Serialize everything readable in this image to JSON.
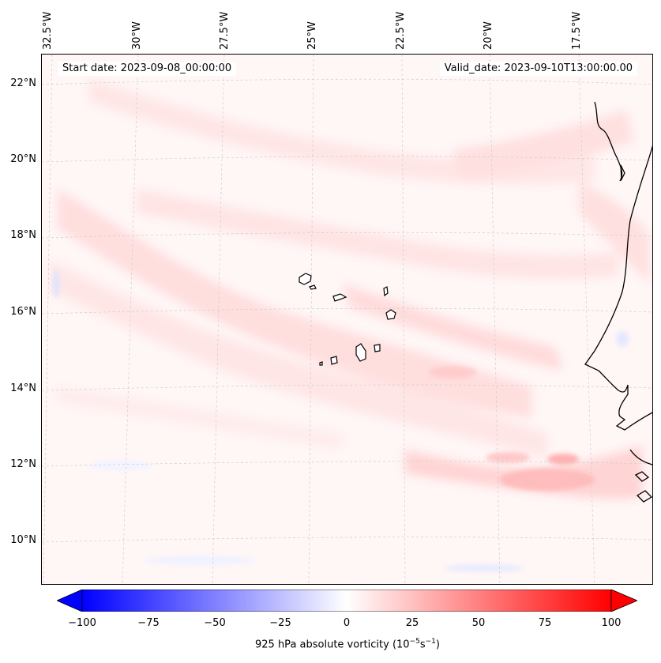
{
  "map": {
    "start_date": "Start date: 2023-09-08_00:00:00",
    "valid_date": "Valid_date: 2023-09-10T13:00:00.00",
    "lon_ticks": [
      "32.5°W",
      "30°W",
      "27.5°W",
      "25°W",
      "22.5°W",
      "20°W",
      "17.5°W"
    ],
    "lat_ticks": [
      "22°N",
      "20°N",
      "18°N",
      "16°N",
      "14°N",
      "12°N",
      "10°N"
    ],
    "field": "925 hPa absolute vorticity",
    "background_color": "#fff5f5",
    "coastline_color": "#000000",
    "gridline_color": "#cccccc"
  },
  "colorbar": {
    "label_prefix": "925 hPa absolute vorticity (10",
    "label_exp1": "−5",
    "label_mid": "s",
    "label_exp2": "−1",
    "label_suffix": ")",
    "ticks": [
      "−100",
      "−75",
      "−50",
      "−25",
      "0",
      "25",
      "50",
      "75",
      "100"
    ],
    "min": -100,
    "max": 100,
    "extend": "both",
    "colors": {
      "low": "#0000ff",
      "mid": "#ffffff",
      "high": "#ff0000"
    }
  }
}
